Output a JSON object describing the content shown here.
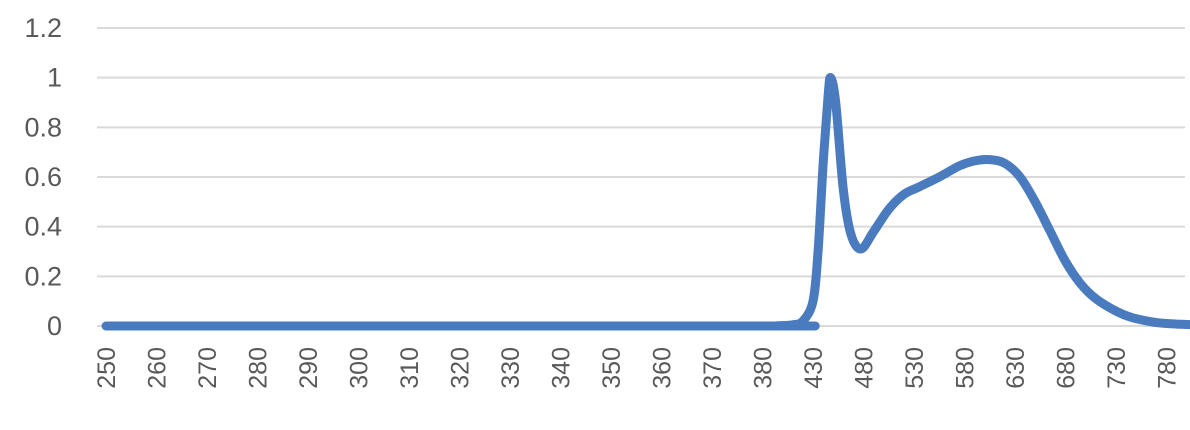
{
  "chart_data": {
    "type": "line",
    "title": "",
    "xlabel": "",
    "ylabel": "",
    "ylim": [
      0,
      1.2
    ],
    "y_ticks": [
      "0",
      "0.2",
      "0.4",
      "0.6",
      "0.8",
      "1",
      "1.2"
    ],
    "grid": true,
    "legend": "none",
    "color": "#4a7bbf",
    "categories": [
      "250",
      "260",
      "270",
      "280",
      "290",
      "300",
      "310",
      "320",
      "330",
      "340",
      "350",
      "360",
      "370",
      "380",
      "430",
      "480",
      "530",
      "580",
      "630",
      "680",
      "730",
      "780"
    ],
    "series": [
      {
        "points": [
          {
            "pos": 0,
            "value": 0
          },
          {
            "pos": 13,
            "value": 0
          },
          {
            "pos": 13.3,
            "value": 0.001
          },
          {
            "pos": 13.6,
            "value": 0.005
          },
          {
            "pos": 13.8,
            "value": 0.02
          },
          {
            "pos": 14.0,
            "value": 0.1
          },
          {
            "pos": 14.1,
            "value": 0.3
          },
          {
            "pos": 14.2,
            "value": 0.65
          },
          {
            "pos": 14.3,
            "value": 0.93
          },
          {
            "pos": 14.35,
            "value": 1.0
          },
          {
            "pos": 14.45,
            "value": 0.9
          },
          {
            "pos": 14.6,
            "value": 0.55
          },
          {
            "pos": 14.75,
            "value": 0.37
          },
          {
            "pos": 14.95,
            "value": 0.31
          },
          {
            "pos": 15.2,
            "value": 0.38
          },
          {
            "pos": 15.5,
            "value": 0.47
          },
          {
            "pos": 15.8,
            "value": 0.53
          },
          {
            "pos": 16.1,
            "value": 0.56
          },
          {
            "pos": 16.5,
            "value": 0.6
          },
          {
            "pos": 16.9,
            "value": 0.645
          },
          {
            "pos": 17.2,
            "value": 0.665
          },
          {
            "pos": 17.5,
            "value": 0.67
          },
          {
            "pos": 17.8,
            "value": 0.655
          },
          {
            "pos": 18.1,
            "value": 0.6
          },
          {
            "pos": 18.4,
            "value": 0.5
          },
          {
            "pos": 18.7,
            "value": 0.38
          },
          {
            "pos": 19.0,
            "value": 0.26
          },
          {
            "pos": 19.3,
            "value": 0.17
          },
          {
            "pos": 19.6,
            "value": 0.11
          },
          {
            "pos": 20.0,
            "value": 0.06
          },
          {
            "pos": 20.3,
            "value": 0.035
          },
          {
            "pos": 20.7,
            "value": 0.017
          },
          {
            "pos": 21.0,
            "value": 0.01
          },
          {
            "pos": 21.3,
            "value": 0.007
          },
          {
            "pos": 21.5,
            "value": 0.005
          }
        ]
      }
    ]
  }
}
